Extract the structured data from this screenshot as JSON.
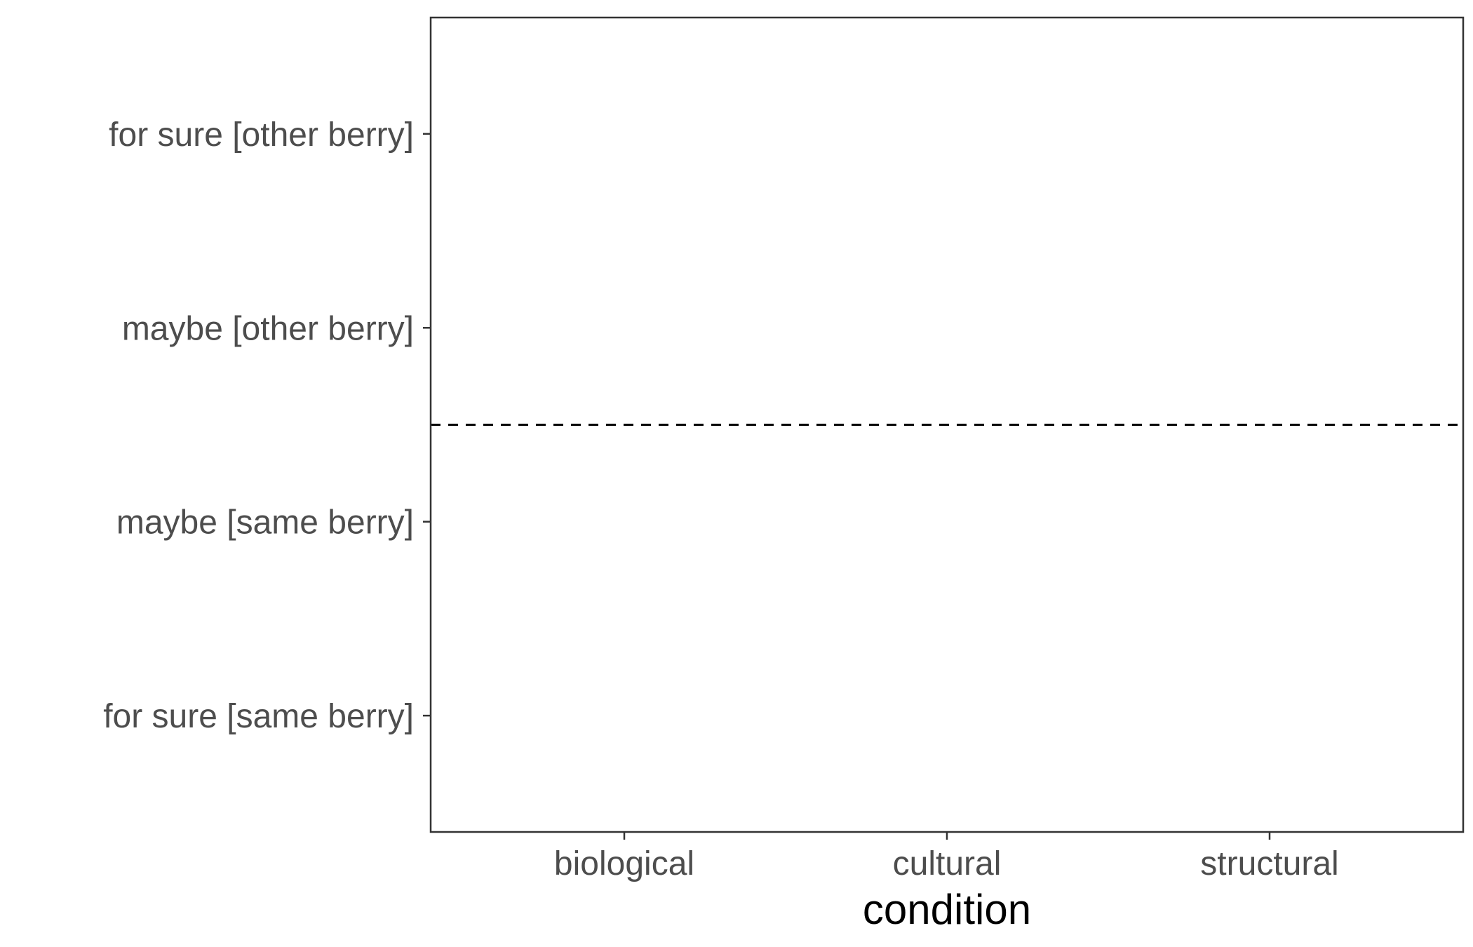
{
  "chart_data": {
    "type": "scatter",
    "title": "",
    "xlabel": "condition",
    "ylabel": "",
    "x_categories": [
      "biological",
      "cultural",
      "structural"
    ],
    "y_categories": [
      "for sure [same berry]",
      "maybe [same berry]",
      "maybe [other berry]",
      "for sure [other berry]"
    ],
    "reference_line": {
      "orientation": "horizontal",
      "style": "dashed",
      "y": 2.5
    },
    "series": [],
    "grid": false,
    "legend": "none"
  }
}
